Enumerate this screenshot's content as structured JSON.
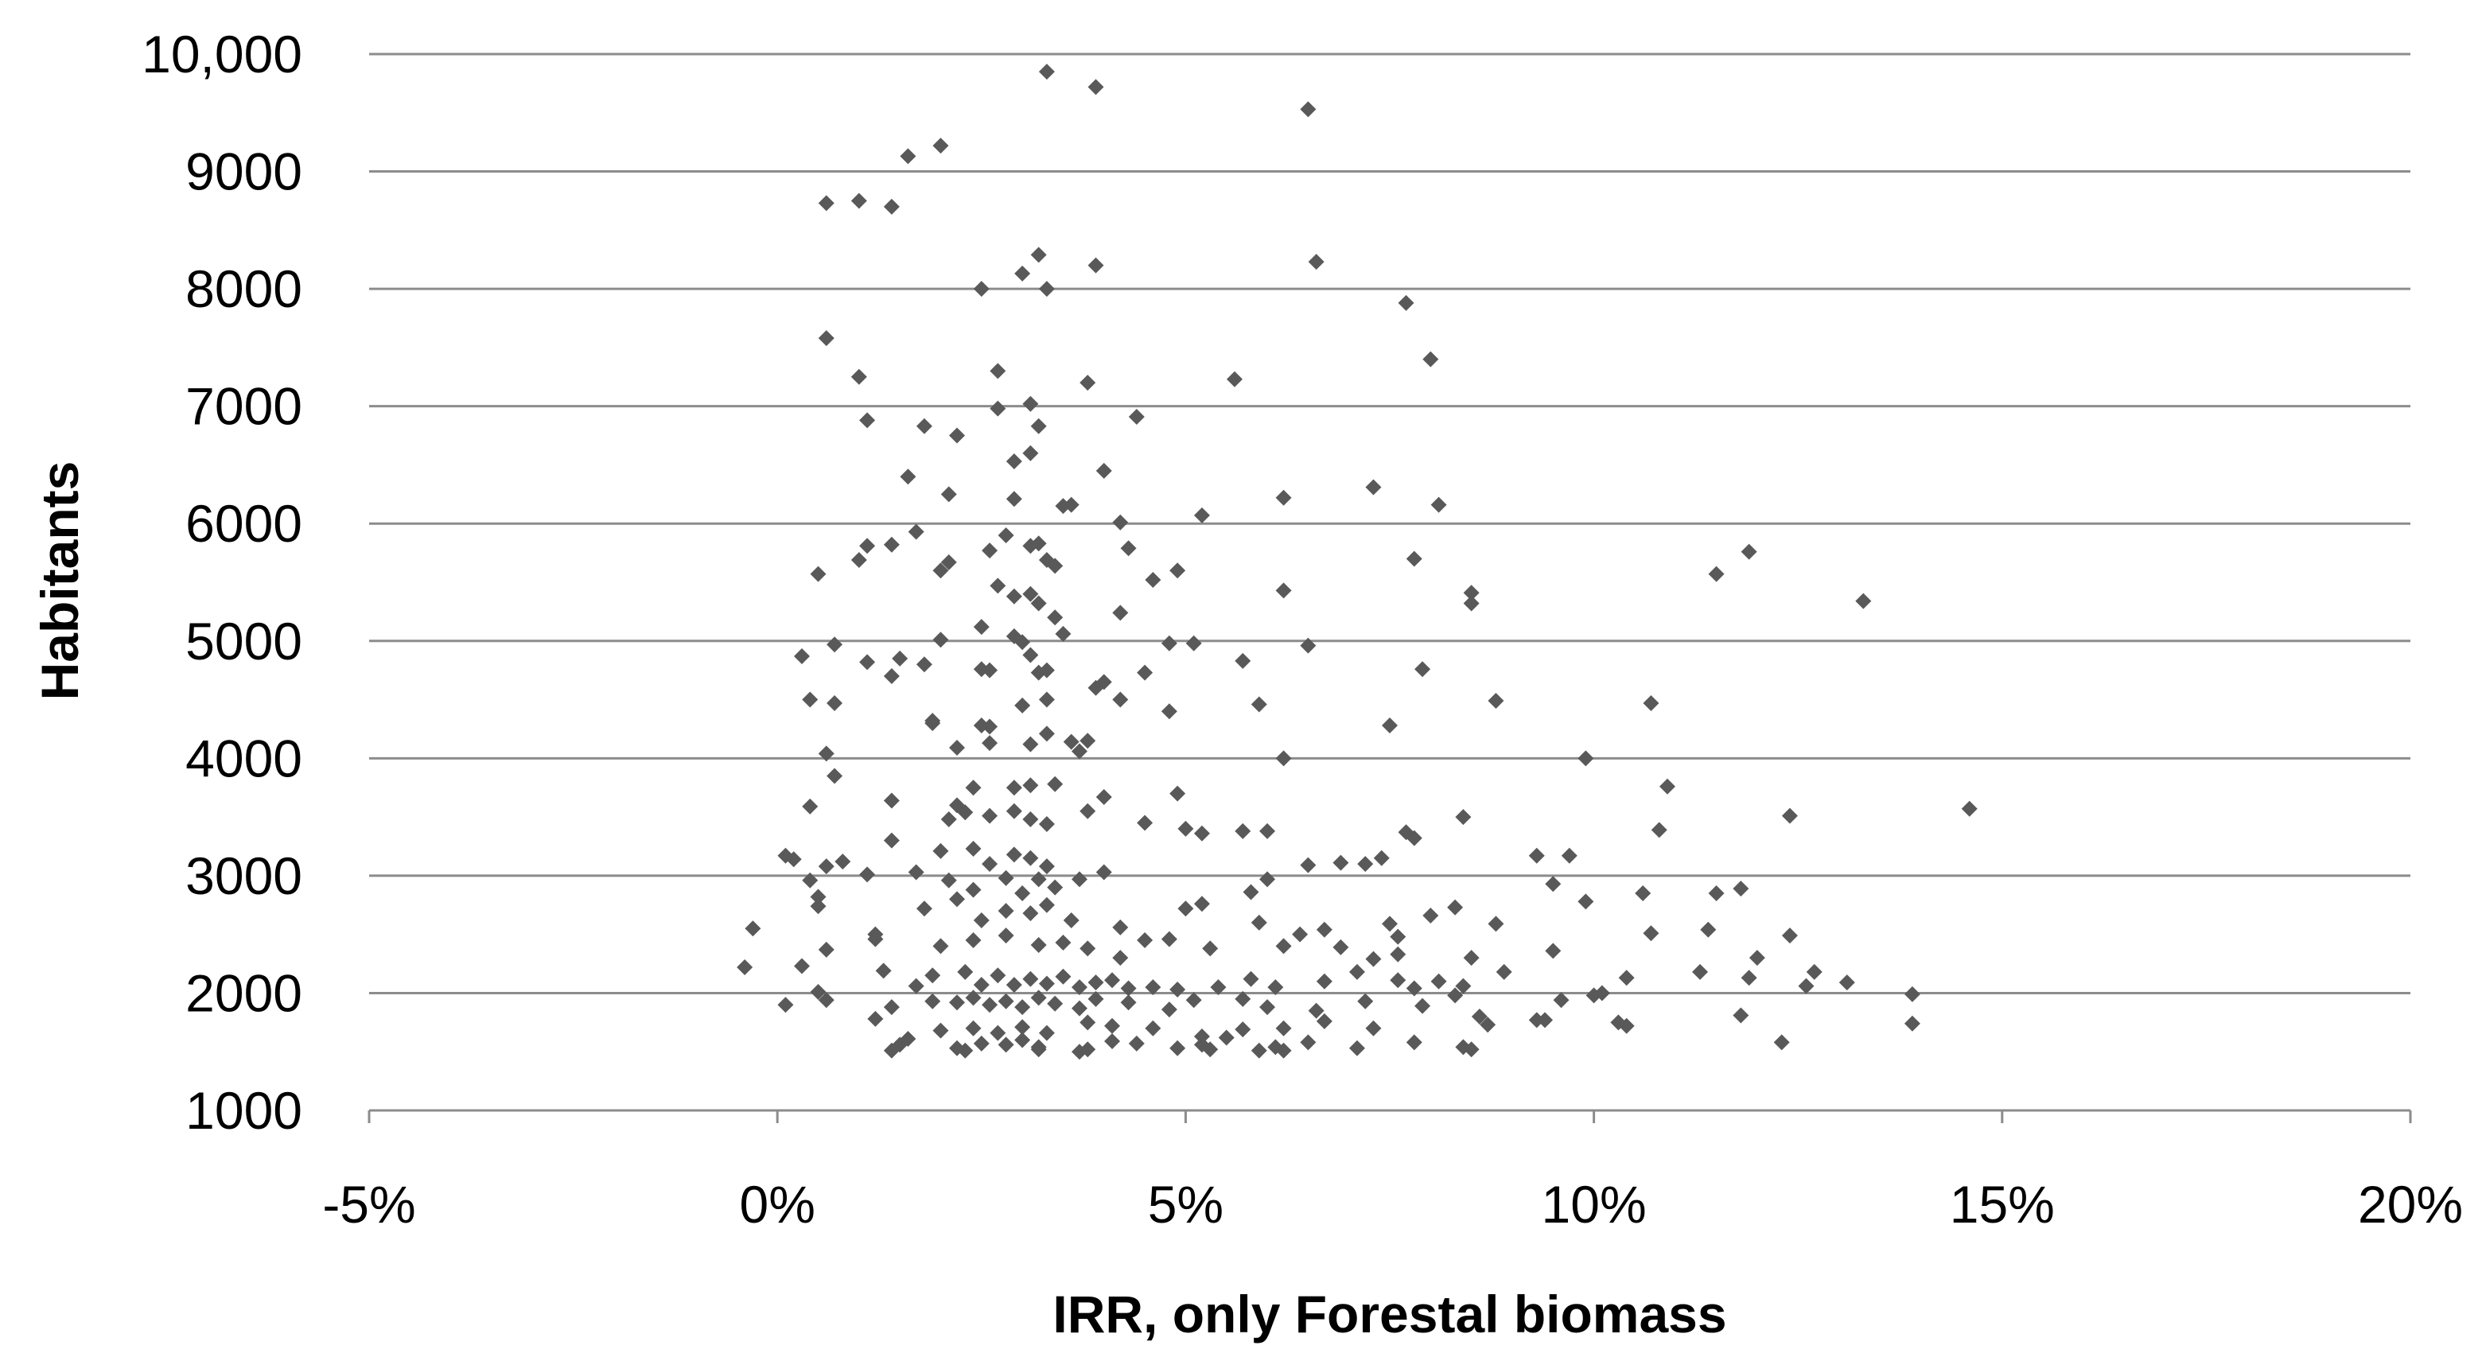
{
  "chart_data": {
    "type": "scatter",
    "xlabel": "IRR, only Forestal biomass",
    "ylabel": "Habitants",
    "xlim": [
      -5,
      20
    ],
    "ylim": [
      1000,
      10000
    ],
    "x_ticks": [
      -5,
      0,
      5,
      10,
      15,
      20
    ],
    "x_tick_labels": [
      "-5%",
      "0%",
      "5%",
      "10%",
      "15%",
      "20%"
    ],
    "y_ticks": [
      1000,
      2000,
      3000,
      4000,
      5000,
      6000,
      7000,
      8000,
      9000,
      10000
    ],
    "y_tick_labels": [
      "1000",
      "2000",
      "3000",
      "4000",
      "5000",
      "6000",
      "7000",
      "8000",
      "9000",
      "10,000"
    ],
    "grid": "horizontal",
    "marker_color": "#595959",
    "points": [
      [
        3.3,
        9850
      ],
      [
        3.9,
        9720
      ],
      [
        6.5,
        9530
      ],
      [
        2.0,
        9220
      ],
      [
        1.6,
        9130
      ],
      [
        0.6,
        8730
      ],
      [
        1.0,
        8750
      ],
      [
        1.4,
        8700
      ],
      [
        3.2,
        8290
      ],
      [
        3.9,
        8200
      ],
      [
        6.6,
        8230
      ],
      [
        2.5,
        8000
      ],
      [
        3.0,
        8130
      ],
      [
        3.3,
        8000
      ],
      [
        7.7,
        7880
      ],
      [
        8.0,
        7400
      ],
      [
        0.6,
        7580
      ],
      [
        1.0,
        7250
      ],
      [
        2.7,
        7300
      ],
      [
        3.8,
        7200
      ],
      [
        5.6,
        7230
      ],
      [
        3.1,
        7020
      ],
      [
        3.2,
        6830
      ],
      [
        4.4,
        6910
      ],
      [
        1.1,
        6880
      ],
      [
        1.8,
        6830
      ],
      [
        2.2,
        6750
      ],
      [
        2.7,
        6980
      ],
      [
        3.1,
        6600
      ],
      [
        2.9,
        6530
      ],
      [
        4.0,
        6450
      ],
      [
        1.6,
        6400
      ],
      [
        2.1,
        6250
      ],
      [
        2.9,
        6210
      ],
      [
        3.5,
        6150
      ],
      [
        3.6,
        6160
      ],
      [
        6.2,
        6220
      ],
      [
        7.3,
        6310
      ],
      [
        8.1,
        6160
      ],
      [
        5.2,
        6070
      ],
      [
        4.2,
        6010
      ],
      [
        0.5,
        5570
      ],
      [
        1.0,
        5690
      ],
      [
        1.1,
        5810
      ],
      [
        1.4,
        5820
      ],
      [
        1.7,
        5930
      ],
      [
        2.0,
        5600
      ],
      [
        2.1,
        5670
      ],
      [
        2.6,
        5770
      ],
      [
        2.8,
        5900
      ],
      [
        3.1,
        5810
      ],
      [
        3.2,
        5830
      ],
      [
        3.3,
        5690
      ],
      [
        3.4,
        5640
      ],
      [
        4.3,
        5790
      ],
      [
        4.6,
        5520
      ],
      [
        4.9,
        5600
      ],
      [
        6.2,
        5430
      ],
      [
        7.8,
        5700
      ],
      [
        8.5,
        5410
      ],
      [
        8.5,
        5320
      ],
      [
        11.5,
        5570
      ],
      [
        11.9,
        5760
      ],
      [
        13.3,
        5340
      ],
      [
        2.7,
        5470
      ],
      [
        2.9,
        5380
      ],
      [
        3.1,
        5400
      ],
      [
        3.2,
        5320
      ],
      [
        3.4,
        5200
      ],
      [
        3.5,
        5060
      ],
      [
        2.5,
        5120
      ],
      [
        2.9,
        5040
      ],
      [
        3.0,
        4990
      ],
      [
        2.0,
        5010
      ],
      [
        1.5,
        4850
      ],
      [
        0.7,
        4970
      ],
      [
        0.3,
        4870
      ],
      [
        1.1,
        4820
      ],
      [
        1.8,
        4800
      ],
      [
        2.5,
        4760
      ],
      [
        3.1,
        4880
      ],
      [
        3.3,
        4750
      ],
      [
        4.2,
        5240
      ],
      [
        4.8,
        4980
      ],
      [
        5.1,
        4980
      ],
      [
        5.7,
        4830
      ],
      [
        6.5,
        4960
      ],
      [
        7.9,
        4760
      ],
      [
        1.4,
        4700
      ],
      [
        2.6,
        4750
      ],
      [
        3.2,
        4730
      ],
      [
        3.9,
        4600
      ],
      [
        4.5,
        4730
      ],
      [
        0.4,
        4500
      ],
      [
        0.7,
        4470
      ],
      [
        1.9,
        4300
      ],
      [
        1.9,
        4320
      ],
      [
        2.5,
        4280
      ],
      [
        2.6,
        4270
      ],
      [
        3.0,
        4450
      ],
      [
        3.3,
        4500
      ],
      [
        4.0,
        4650
      ],
      [
        4.2,
        4500
      ],
      [
        4.8,
        4400
      ],
      [
        5.9,
        4460
      ],
      [
        7.5,
        4280
      ],
      [
        8.8,
        4490
      ],
      [
        10.7,
        4470
      ],
      [
        0.6,
        4040
      ],
      [
        0.7,
        3850
      ],
      [
        2.2,
        4090
      ],
      [
        2.6,
        4130
      ],
      [
        3.1,
        4120
      ],
      [
        3.3,
        4210
      ],
      [
        3.6,
        4140
      ],
      [
        3.8,
        4150
      ],
      [
        3.7,
        4060
      ],
      [
        6.2,
        4000
      ],
      [
        9.9,
        4000
      ],
      [
        2.4,
        3750
      ],
      [
        2.9,
        3750
      ],
      [
        3.1,
        3770
      ],
      [
        3.4,
        3780
      ],
      [
        4.0,
        3670
      ],
      [
        4.9,
        3700
      ],
      [
        0.4,
        3590
      ],
      [
        1.4,
        3640
      ],
      [
        2.2,
        3600
      ],
      [
        2.1,
        3480
      ],
      [
        2.3,
        3540
      ],
      [
        2.6,
        3510
      ],
      [
        2.9,
        3550
      ],
      [
        3.1,
        3480
      ],
      [
        3.3,
        3440
      ],
      [
        3.8,
        3550
      ],
      [
        4.5,
        3450
      ],
      [
        5.0,
        3400
      ],
      [
        5.2,
        3360
      ],
      [
        5.7,
        3380
      ],
      [
        6.0,
        3380
      ],
      [
        7.7,
        3370
      ],
      [
        7.8,
        3320
      ],
      [
        8.4,
        3500
      ],
      [
        10.8,
        3390
      ],
      [
        10.9,
        3760
      ],
      [
        12.4,
        3510
      ],
      [
        14.6,
        3570
      ],
      [
        1.4,
        3300
      ],
      [
        2.0,
        3210
      ],
      [
        2.4,
        3230
      ],
      [
        2.6,
        3100
      ],
      [
        2.9,
        3180
      ],
      [
        3.1,
        3150
      ],
      [
        3.3,
        3080
      ],
      [
        0.1,
        3170
      ],
      [
        0.2,
        3140
      ],
      [
        0.6,
        3080
      ],
      [
        0.8,
        3120
      ],
      [
        1.1,
        3010
      ],
      [
        1.7,
        3030
      ],
      [
        2.1,
        2960
      ],
      [
        2.4,
        2880
      ],
      [
        2.8,
        2980
      ],
      [
        3.0,
        2850
      ],
      [
        3.2,
        2970
      ],
      [
        3.4,
        2900
      ],
      [
        3.7,
        2970
      ],
      [
        4.0,
        3030
      ],
      [
        5.0,
        2720
      ],
      [
        5.2,
        2760
      ],
      [
        5.8,
        2860
      ],
      [
        6.0,
        2970
      ],
      [
        6.5,
        3090
      ],
      [
        6.9,
        3110
      ],
      [
        7.2,
        3100
      ],
      [
        7.4,
        3150
      ],
      [
        9.3,
        3170
      ],
      [
        9.7,
        3170
      ],
      [
        9.5,
        2930
      ],
      [
        0.4,
        2960
      ],
      [
        0.5,
        2820
      ],
      [
        0.5,
        2740
      ],
      [
        1.2,
        2500
      ],
      [
        1.8,
        2720
      ],
      [
        2.2,
        2800
      ],
      [
        2.5,
        2620
      ],
      [
        2.8,
        2700
      ],
      [
        3.1,
        2680
      ],
      [
        3.3,
        2750
      ],
      [
        3.6,
        2620
      ],
      [
        4.2,
        2560
      ],
      [
        4.8,
        2460
      ],
      [
        5.9,
        2600
      ],
      [
        6.4,
        2500
      ],
      [
        6.7,
        2540
      ],
      [
        7.5,
        2590
      ],
      [
        7.6,
        2480
      ],
      [
        8.0,
        2660
      ],
      [
        8.3,
        2730
      ],
      [
        8.8,
        2590
      ],
      [
        9.9,
        2780
      ],
      [
        10.6,
        2850
      ],
      [
        11.5,
        2850
      ],
      [
        11.8,
        2890
      ],
      [
        12.7,
        2180
      ],
      [
        -0.3,
        2550
      ],
      [
        0.6,
        2370
      ],
      [
        1.2,
        2460
      ],
      [
        2.0,
        2400
      ],
      [
        2.4,
        2450
      ],
      [
        2.8,
        2490
      ],
      [
        3.2,
        2410
      ],
      [
        3.5,
        2430
      ],
      [
        3.8,
        2380
      ],
      [
        4.2,
        2300
      ],
      [
        4.5,
        2450
      ],
      [
        5.3,
        2380
      ],
      [
        6.2,
        2400
      ],
      [
        6.9,
        2390
      ],
      [
        7.3,
        2290
      ],
      [
        7.6,
        2330
      ],
      [
        8.5,
        2300
      ],
      [
        9.5,
        2360
      ],
      [
        10.7,
        2510
      ],
      [
        11.4,
        2540
      ],
      [
        12.0,
        2300
      ],
      [
        12.4,
        2490
      ],
      [
        -0.4,
        2220
      ],
      [
        0.3,
        2230
      ],
      [
        0.5,
        2010
      ],
      [
        1.3,
        2190
      ],
      [
        1.7,
        2060
      ],
      [
        1.9,
        2150
      ],
      [
        2.3,
        2180
      ],
      [
        2.5,
        2070
      ],
      [
        2.7,
        2150
      ],
      [
        2.9,
        2070
      ],
      [
        3.1,
        2120
      ],
      [
        3.3,
        2080
      ],
      [
        3.5,
        2140
      ],
      [
        3.7,
        2050
      ],
      [
        3.9,
        2090
      ],
      [
        4.1,
        2110
      ],
      [
        4.3,
        2040
      ],
      [
        4.6,
        2050
      ],
      [
        4.9,
        2030
      ],
      [
        5.4,
        2050
      ],
      [
        5.8,
        2120
      ],
      [
        6.1,
        2050
      ],
      [
        6.7,
        2100
      ],
      [
        7.1,
        2180
      ],
      [
        7.6,
        2110
      ],
      [
        7.8,
        2040
      ],
      [
        8.1,
        2100
      ],
      [
        8.4,
        2060
      ],
      [
        8.9,
        2180
      ],
      [
        10.1,
        2000
      ],
      [
        10.4,
        2130
      ],
      [
        11.3,
        2180
      ],
      [
        11.9,
        2130
      ],
      [
        12.6,
        2060
      ],
      [
        13.1,
        2090
      ],
      [
        13.9,
        1990
      ],
      [
        0.1,
        1900
      ],
      [
        0.6,
        1940
      ],
      [
        1.4,
        1880
      ],
      [
        1.9,
        1930
      ],
      [
        2.2,
        1920
      ],
      [
        2.4,
        1960
      ],
      [
        2.6,
        1900
      ],
      [
        2.8,
        1930
      ],
      [
        3.0,
        1880
      ],
      [
        3.2,
        1960
      ],
      [
        3.4,
        1910
      ],
      [
        3.7,
        1870
      ],
      [
        3.9,
        1950
      ],
      [
        4.3,
        1920
      ],
      [
        4.8,
        1860
      ],
      [
        5.1,
        1940
      ],
      [
        5.7,
        1950
      ],
      [
        6.0,
        1880
      ],
      [
        6.6,
        1850
      ],
      [
        7.2,
        1930
      ],
      [
        7.9,
        1890
      ],
      [
        8.3,
        1980
      ],
      [
        8.6,
        1800
      ],
      [
        9.3,
        1770
      ],
      [
        9.6,
        1940
      ],
      [
        10.0,
        1980
      ],
      [
        10.3,
        1750
      ],
      [
        11.8,
        1810
      ],
      [
        1.2,
        1780
      ],
      [
        2.0,
        1680
      ],
      [
        2.4,
        1700
      ],
      [
        2.7,
        1660
      ],
      [
        3.0,
        1710
      ],
      [
        3.3,
        1660
      ],
      [
        3.8,
        1750
      ],
      [
        4.1,
        1720
      ],
      [
        4.6,
        1700
      ],
      [
        5.2,
        1630
      ],
      [
        5.7,
        1690
      ],
      [
        6.2,
        1700
      ],
      [
        6.7,
        1760
      ],
      [
        7.3,
        1700
      ],
      [
        8.7,
        1730
      ],
      [
        9.4,
        1770
      ],
      [
        10.4,
        1720
      ],
      [
        12.3,
        1580
      ],
      [
        13.9,
        1740
      ],
      [
        1.5,
        1560
      ],
      [
        1.6,
        1610
      ],
      [
        2.2,
        1530
      ],
      [
        2.5,
        1570
      ],
      [
        2.8,
        1560
      ],
      [
        3.0,
        1600
      ],
      [
        3.2,
        1540
      ],
      [
        3.8,
        1520
      ],
      [
        4.1,
        1590
      ],
      [
        4.4,
        1570
      ],
      [
        4.9,
        1530
      ],
      [
        5.2,
        1560
      ],
      [
        5.5,
        1620
      ],
      [
        5.9,
        1510
      ],
      [
        6.1,
        1540
      ],
      [
        6.5,
        1580
      ],
      [
        7.1,
        1530
      ],
      [
        7.8,
        1580
      ],
      [
        8.4,
        1540
      ],
      [
        8.5,
        1520
      ],
      [
        1.4,
        1510
      ],
      [
        2.3,
        1510
      ],
      [
        3.2,
        1520
      ],
      [
        3.7,
        1500
      ],
      [
        5.3,
        1520
      ],
      [
        6.2,
        1510
      ]
    ]
  }
}
